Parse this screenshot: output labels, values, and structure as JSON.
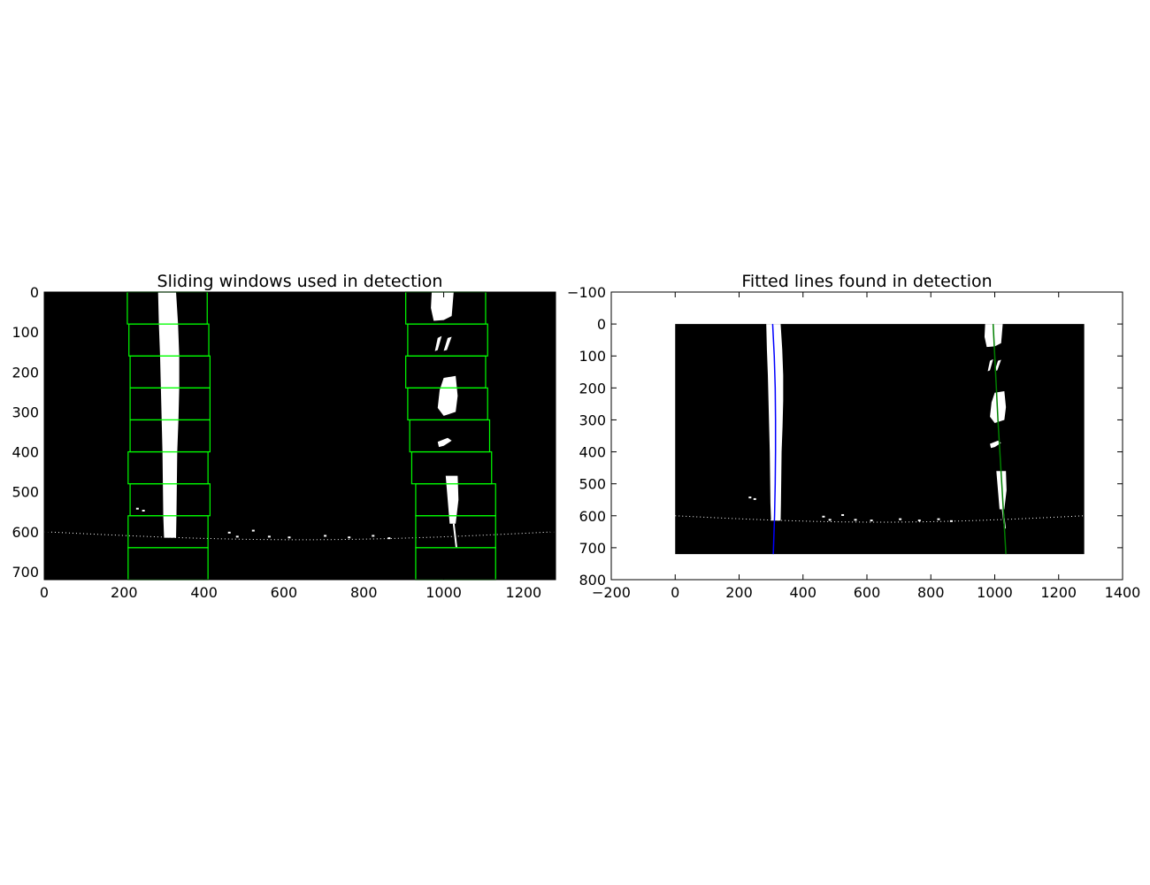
{
  "chart_data": [
    {
      "type": "image",
      "title": "Sliding windows used in detection",
      "xlim": [
        0,
        1280
      ],
      "ylim": [
        720,
        0
      ],
      "xticks": [
        0,
        200,
        400,
        600,
        800,
        1000,
        1200
      ],
      "yticks": [
        0,
        100,
        200,
        300,
        400,
        500,
        600,
        700
      ],
      "grid": false,
      "image_background": "#000000",
      "lane_pixel_color": "#ffffff",
      "window_color": "#00ff00",
      "windows_left": [
        {
          "x0": 210,
          "x1": 410,
          "y0": 640,
          "y1": 720
        },
        {
          "x0": 210,
          "x1": 410,
          "y0": 560,
          "y1": 640
        },
        {
          "x0": 215,
          "x1": 415,
          "y0": 480,
          "y1": 560
        },
        {
          "x0": 210,
          "x1": 410,
          "y0": 400,
          "y1": 480
        },
        {
          "x0": 215,
          "x1": 415,
          "y0": 320,
          "y1": 400
        },
        {
          "x0": 215,
          "x1": 415,
          "y0": 240,
          "y1": 320
        },
        {
          "x0": 215,
          "x1": 415,
          "y0": 160,
          "y1": 240
        },
        {
          "x0": 212,
          "x1": 412,
          "y0": 80,
          "y1": 160
        },
        {
          "x0": 208,
          "x1": 408,
          "y0": 0,
          "y1": 80
        }
      ],
      "windows_right": [
        {
          "x0": 930,
          "x1": 1130,
          "y0": 640,
          "y1": 720
        },
        {
          "x0": 930,
          "x1": 1130,
          "y0": 560,
          "y1": 640
        },
        {
          "x0": 930,
          "x1": 1130,
          "y0": 480,
          "y1": 560
        },
        {
          "x0": 920,
          "x1": 1120,
          "y0": 400,
          "y1": 480
        },
        {
          "x0": 915,
          "x1": 1115,
          "y0": 320,
          "y1": 400
        },
        {
          "x0": 910,
          "x1": 1110,
          "y0": 240,
          "y1": 320
        },
        {
          "x0": 905,
          "x1": 1105,
          "y0": 160,
          "y1": 240
        },
        {
          "x0": 910,
          "x1": 1110,
          "y0": 80,
          "y1": 160
        },
        {
          "x0": 905,
          "x1": 1105,
          "y0": 0,
          "y1": 80
        }
      ]
    },
    {
      "type": "image",
      "title": "Fitted lines found in detection",
      "xlim": [
        -200,
        1400
      ],
      "ylim": [
        800,
        -100
      ],
      "xticks": [
        -200,
        0,
        200,
        400,
        600,
        800,
        1000,
        1200,
        1400
      ],
      "yticks": [
        -100,
        0,
        100,
        200,
        300,
        400,
        500,
        600,
        700,
        800
      ],
      "grid": false,
      "image_extent": {
        "x": [
          0,
          1280
        ],
        "y": [
          0,
          720
        ]
      },
      "image_background": "#000000",
      "lane_pixel_color": "#ffffff",
      "series": [
        {
          "color": "#0000ff",
          "points": [
            [
              305,
              0
            ],
            [
              310,
              100
            ],
            [
              313,
              200
            ],
            [
              314,
              300
            ],
            [
              314,
              400
            ],
            [
              313,
              500
            ],
            [
              311,
              600
            ],
            [
              307,
              720
            ]
          ]
        },
        {
          "color": "#008000",
          "points": [
            [
              995,
              0
            ],
            [
              1000,
              100
            ],
            [
              1005,
              200
            ],
            [
              1010,
              300
            ],
            [
              1016,
              400
            ],
            [
              1022,
              500
            ],
            [
              1028,
              600
            ],
            [
              1035,
              720
            ]
          ]
        }
      ]
    }
  ]
}
